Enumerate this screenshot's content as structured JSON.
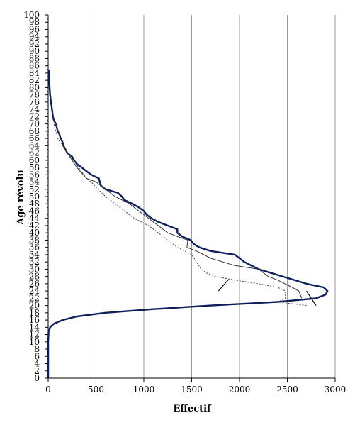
{
  "chart_data": {
    "type": "line",
    "title": "",
    "xlabel": "Effectif",
    "ylabel": "Age révolu",
    "xlim": [
      0,
      3000
    ],
    "ylim": [
      0,
      100
    ],
    "x_ticks": [
      "0",
      "500",
      "1000",
      "1500",
      "2000",
      "2500",
      "3000"
    ],
    "y_ticks": [
      "0",
      "2",
      "4",
      "6",
      "8",
      "10",
      "12",
      "14",
      "16",
      "18",
      "20",
      "22",
      "24",
      "26",
      "28",
      "30",
      "32",
      "34",
      "36",
      "38",
      "40",
      "42",
      "44",
      "46",
      "48",
      "50",
      "52",
      "54",
      "56",
      "58",
      "60",
      "62",
      "64",
      "66",
      "68",
      "70",
      "72",
      "74",
      "76",
      "78",
      "80",
      "82",
      "84",
      "86",
      "88",
      "90",
      "92",
      "94",
      "96",
      "98",
      "100"
    ],
    "grid": "vertical",
    "colors": {
      "thick": "#0d1f5c",
      "thin": "#333333",
      "dotted": "#444444"
    },
    "series": [
      {
        "style": "thick",
        "points": [
          [
            0,
            0
          ],
          [
            0,
            10
          ],
          [
            5,
            13
          ],
          [
            20,
            14
          ],
          [
            60,
            15
          ],
          [
            150,
            16
          ],
          [
            300,
            17
          ],
          [
            600,
            18
          ],
          [
            1100,
            19
          ],
          [
            1700,
            20
          ],
          [
            2400,
            21
          ],
          [
            2800,
            22
          ],
          [
            2900,
            23
          ],
          [
            2920,
            24
          ],
          [
            2880,
            25
          ],
          [
            2700,
            26
          ],
          [
            2450,
            28
          ],
          [
            2200,
            30
          ],
          [
            2050,
            32
          ],
          [
            1950,
            34
          ],
          [
            1700,
            35
          ],
          [
            1580,
            36
          ],
          [
            1520,
            37
          ],
          [
            1490,
            38
          ],
          [
            1400,
            39
          ],
          [
            1350,
            40
          ],
          [
            1350,
            41
          ],
          [
            1250,
            42
          ],
          [
            1150,
            43
          ],
          [
            1080,
            44
          ],
          [
            1030,
            45
          ],
          [
            1000,
            46
          ],
          [
            950,
            47
          ],
          [
            880,
            48
          ],
          [
            800,
            49
          ],
          [
            770,
            50
          ],
          [
            730,
            51
          ],
          [
            600,
            52
          ],
          [
            550,
            53
          ],
          [
            540,
            54
          ],
          [
            530,
            55
          ],
          [
            450,
            56
          ],
          [
            400,
            57
          ],
          [
            350,
            58
          ],
          [
            300,
            59
          ],
          [
            270,
            60
          ],
          [
            250,
            61
          ],
          [
            200,
            62
          ],
          [
            180,
            63
          ],
          [
            160,
            64
          ],
          [
            150,
            65
          ],
          [
            130,
            66
          ],
          [
            120,
            67
          ],
          [
            100,
            68
          ],
          [
            90,
            69
          ],
          [
            80,
            70
          ],
          [
            60,
            71
          ],
          [
            50,
            72
          ],
          [
            40,
            74
          ],
          [
            30,
            76
          ],
          [
            20,
            78
          ],
          [
            15,
            80
          ],
          [
            10,
            82
          ],
          [
            8,
            84
          ],
          [
            5,
            85
          ]
        ]
      },
      {
        "style": "thin",
        "points": [
          [
            2650,
            22
          ],
          [
            2620,
            24
          ],
          [
            2550,
            25
          ],
          [
            2400,
            27
          ],
          [
            2300,
            28
          ],
          [
            2200,
            30
          ],
          [
            1950,
            31
          ],
          [
            1700,
            33
          ],
          [
            1550,
            35
          ],
          [
            1450,
            36
          ],
          [
            1460,
            38
          ],
          [
            1350,
            39
          ],
          [
            1250,
            40
          ],
          [
            1150,
            42
          ],
          [
            1050,
            44
          ],
          [
            950,
            46
          ],
          [
            850,
            48
          ],
          [
            700,
            50
          ],
          [
            600,
            52
          ],
          [
            500,
            54
          ],
          [
            400,
            55
          ],
          [
            300,
            58
          ],
          [
            200,
            62
          ],
          [
            130,
            66
          ],
          [
            80,
            70
          ],
          [
            50,
            72
          ]
        ]
      },
      {
        "style": "dotted",
        "points": [
          [
            2700,
            20
          ],
          [
            2400,
            21
          ],
          [
            2480,
            22
          ],
          [
            2480,
            24
          ],
          [
            2400,
            25
          ],
          [
            2200,
            26
          ],
          [
            1950,
            27
          ],
          [
            1750,
            28
          ],
          [
            1650,
            29
          ],
          [
            1600,
            30
          ],
          [
            1550,
            32
          ],
          [
            1500,
            34
          ],
          [
            1350,
            36
          ],
          [
            1250,
            38
          ],
          [
            1150,
            40
          ],
          [
            1050,
            42
          ],
          [
            900,
            44
          ],
          [
            800,
            46
          ],
          [
            700,
            48
          ],
          [
            600,
            50
          ],
          [
            520,
            52
          ],
          [
            450,
            54
          ],
          [
            400,
            55
          ],
          [
            320,
            58
          ],
          [
            200,
            62
          ],
          [
            100,
            66
          ],
          [
            80,
            68
          ],
          [
            60,
            70
          ]
        ]
      }
    ],
    "annotation_lines": [
      {
        "from": [
          1780,
          24
        ],
        "to": [
          1880,
          27
        ]
      },
      {
        "from": [
          2700,
          24
        ],
        "to": [
          2800,
          20
        ]
      }
    ]
  }
}
